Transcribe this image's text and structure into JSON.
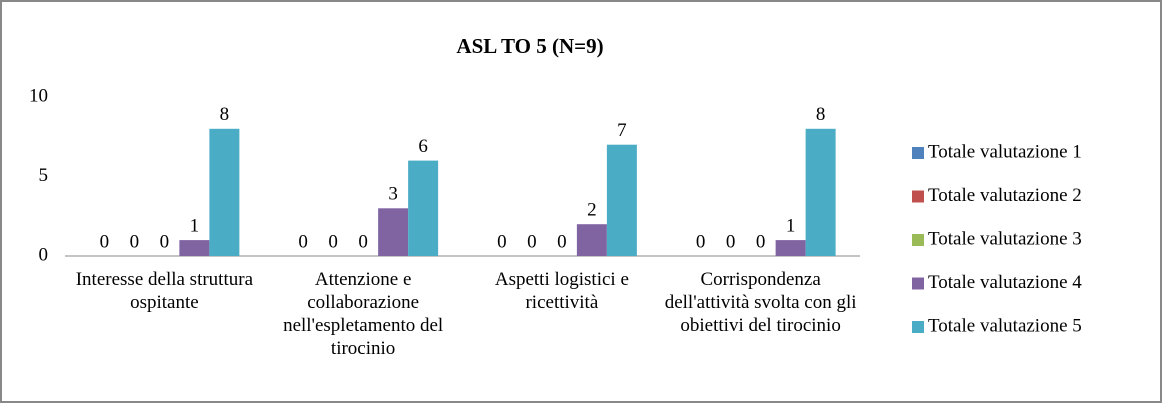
{
  "chart_data": {
    "type": "bar",
    "title": "ASL TO 5 (N=9)",
    "categories": [
      "Interesse della struttura ospitante",
      "Attenzione e collaborazione nell'espletamento del tirocinio",
      "Aspetti logistici e ricettività",
      "Corrispondenza dell'attività svolta con gli obiettivi del tirocinio"
    ],
    "series": [
      {
        "name": "Totale valutazione 1",
        "color": "#4f81bd",
        "values": [
          0,
          0,
          0,
          0
        ]
      },
      {
        "name": "Totale valutazione 2",
        "color": "#c0504d",
        "values": [
          0,
          0,
          0,
          0
        ]
      },
      {
        "name": "Totale valutazione 3",
        "color": "#9bbb59",
        "values": [
          0,
          0,
          0,
          0
        ]
      },
      {
        "name": "Totale valutazione 4",
        "color": "#8064a2",
        "values": [
          1,
          3,
          2,
          1
        ]
      },
      {
        "name": "Totale valutazione 5",
        "color": "#4bacc6",
        "values": [
          8,
          6,
          7,
          8
        ]
      }
    ],
    "ylim": [
      0,
      10
    ],
    "yticks": [
      0,
      5,
      10
    ],
    "grid": false,
    "legend": "right"
  }
}
